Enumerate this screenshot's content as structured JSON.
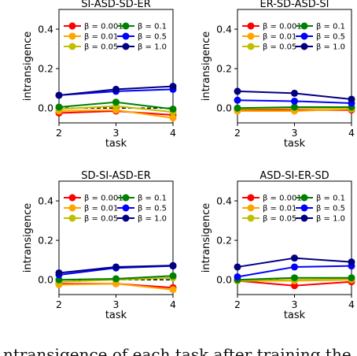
{
  "caption_fragment": "ntransigence of each task after training the",
  "chart_data": [
    {
      "type": "line",
      "title": "SI-ASD-SD-ER",
      "xlabel": "task",
      "ylabel": "intransigence",
      "x": [
        2,
        3,
        4
      ],
      "xticks": [
        "2",
        "3",
        "4"
      ],
      "yticks": [
        "0.0",
        "0.2",
        "0.4"
      ],
      "ylim": [
        -0.075,
        0.5
      ],
      "grid": false,
      "legend": "top, two columns",
      "baseline": {
        "style": "dashed",
        "color": "#000000",
        "values": [
          0.0,
          0.0,
          0.0
        ]
      },
      "series": [
        {
          "name": "β = 0.001",
          "color": "#ff0000",
          "values": [
            -0.025,
            -0.015,
            -0.035
          ]
        },
        {
          "name": "β = 0.01",
          "color": "#ffa500",
          "values": [
            -0.015,
            -0.01,
            -0.05
          ]
        },
        {
          "name": "β = 0.05",
          "color": "#bfbf00",
          "values": [
            -0.005,
            0.01,
            -0.02
          ]
        },
        {
          "name": "β = 0.1",
          "color": "#008000",
          "values": [
            0.005,
            0.03,
            -0.005
          ]
        },
        {
          "name": "β = 0.5",
          "color": "#0000ff",
          "values": [
            0.065,
            0.085,
            0.095
          ]
        },
        {
          "name": "β = 1.0",
          "color": "#000080",
          "values": [
            0.065,
            0.095,
            0.11
          ]
        }
      ]
    },
    {
      "type": "line",
      "title": "ER-SD-ASD-SI",
      "xlabel": "task",
      "ylabel": "intransigence",
      "x": [
        2,
        3,
        4
      ],
      "xticks": [
        "2",
        "3",
        "4"
      ],
      "yticks": [
        "0.0",
        "0.2",
        "0.4"
      ],
      "ylim": [
        -0.075,
        0.5
      ],
      "grid": false,
      "legend": "top, two columns",
      "baseline": {
        "style": "dashed",
        "color": "#000000",
        "values": [
          0.0,
          0.0,
          0.0
        ]
      },
      "series": [
        {
          "name": "β = 0.001",
          "color": "#ff0000",
          "values": [
            -0.01,
            -0.01,
            -0.01
          ]
        },
        {
          "name": "β = 0.01",
          "color": "#ffa500",
          "values": [
            -0.015,
            -0.015,
            -0.005
          ]
        },
        {
          "name": "β = 0.05",
          "color": "#bfbf00",
          "values": [
            -0.005,
            0.0,
            0.0
          ]
        },
        {
          "name": "β = 0.1",
          "color": "#008000",
          "values": [
            0.0,
            0.005,
            0.005
          ]
        },
        {
          "name": "β = 0.5",
          "color": "#0000ff",
          "values": [
            0.04,
            0.035,
            0.025
          ]
        },
        {
          "name": "β = 1.0",
          "color": "#000080",
          "values": [
            0.085,
            0.075,
            0.045
          ]
        }
      ]
    },
    {
      "type": "line",
      "title": "SD-SI-ASD-ER",
      "xlabel": "task",
      "ylabel": "intransigence",
      "x": [
        2,
        3,
        4
      ],
      "xticks": [
        "2",
        "3",
        "4"
      ],
      "yticks": [
        "0.0",
        "0.2",
        "0.4"
      ],
      "ylim": [
        -0.075,
        0.5
      ],
      "grid": false,
      "legend": "top, two columns",
      "baseline": {
        "style": "dashed",
        "color": "#000000",
        "values": [
          0.0,
          0.0,
          0.0
        ]
      },
      "series": [
        {
          "name": "β = 0.001",
          "color": "#ff0000",
          "values": [
            -0.02,
            -0.02,
            -0.04
          ]
        },
        {
          "name": "β = 0.01",
          "color": "#ffa500",
          "values": [
            -0.025,
            -0.02,
            -0.05
          ]
        },
        {
          "name": "β = 0.05",
          "color": "#bfbf00",
          "values": [
            -0.01,
            0.0,
            0.01
          ]
        },
        {
          "name": "β = 0.1",
          "color": "#008000",
          "values": [
            0.0,
            0.005,
            0.02
          ]
        },
        {
          "name": "β = 0.5",
          "color": "#0000ff",
          "values": [
            0.025,
            0.06,
            0.07
          ]
        },
        {
          "name": "β = 1.0",
          "color": "#000080",
          "values": [
            0.035,
            0.065,
            0.072
          ]
        }
      ]
    },
    {
      "type": "line",
      "title": "ASD-SI-ER-SD",
      "xlabel": "task",
      "ylabel": "intransigence",
      "x": [
        2,
        3,
        4
      ],
      "xticks": [
        "2",
        "3",
        "4"
      ],
      "yticks": [
        "0.0",
        "0.2",
        "0.4"
      ],
      "ylim": [
        -0.075,
        0.5
      ],
      "grid": false,
      "legend": "top, two columns",
      "baseline": {
        "style": "dashed",
        "color": "#000000",
        "values": [
          0.0,
          0.0,
          0.0
        ]
      },
      "series": [
        {
          "name": "β = 0.001",
          "color": "#ff0000",
          "values": [
            -0.005,
            -0.03,
            -0.01
          ]
        },
        {
          "name": "β = 0.01",
          "color": "#ffa500",
          "values": [
            -0.005,
            -0.005,
            0.0
          ]
        },
        {
          "name": "β = 0.05",
          "color": "#bfbf00",
          "values": [
            -0.005,
            0.0,
            0.005
          ]
        },
        {
          "name": "β = 0.1",
          "color": "#008000",
          "values": [
            0.0,
            0.01,
            0.01
          ]
        },
        {
          "name": "β = 0.5",
          "color": "#0000ff",
          "values": [
            0.015,
            0.065,
            0.07
          ]
        },
        {
          "name": "β = 1.0",
          "color": "#000080",
          "values": [
            0.065,
            0.11,
            0.09
          ]
        }
      ]
    }
  ]
}
